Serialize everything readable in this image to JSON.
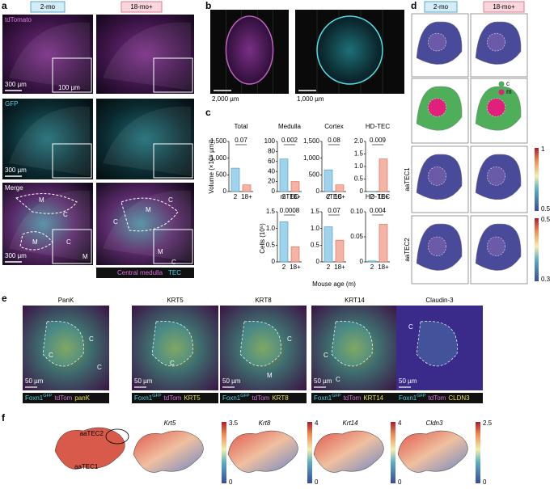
{
  "a": {
    "label": "a",
    "headers": [
      "2-mo",
      "18-mo+"
    ],
    "rows": [
      {
        "channel": "tdTomato",
        "scale": "300 µm",
        "inset_scale": "100 µm"
      },
      {
        "channel": "GFP",
        "scale": "300 µm"
      },
      {
        "channel": "Merge",
        "scale": "300 µm",
        "regions_left": [
          "M",
          "C",
          "M",
          "C",
          "M"
        ],
        "regions_right": [
          "C",
          "M",
          "C",
          "M",
          "C"
        ]
      }
    ],
    "legend": [
      "Central medulla",
      "TEC"
    ]
  },
  "b": {
    "label": "b",
    "scales": [
      "2,000 µm",
      "1,000 µm"
    ]
  },
  "c": {
    "label": "c",
    "y_titles": [
      "Volume (×10⁸ µm³)",
      "Cells (10⁵)"
    ],
    "x_title": "Mouse age (m)",
    "categories": [
      "2",
      "18+"
    ],
    "colors": [
      "#9fd3ec",
      "#f4b3a5"
    ],
    "plots": [
      {
        "title": "Total",
        "values": [
          700,
          200
        ],
        "p": "0.07",
        "ylim": [
          0,
          1500
        ],
        "yticks": [
          0,
          500,
          {
            "value": 1000,
            "label": "1,000"
          },
          {
            "value": 1500,
            "label": "1,500"
          }
        ]
      },
      {
        "title": "Medulla",
        "values": [
          65,
          20
        ],
        "p": "0.002",
        "ylim": [
          0,
          100
        ],
        "yticks": [
          0,
          20,
          40,
          60,
          80,
          100
        ]
      },
      {
        "title": "Cortex",
        "values": [
          650,
          200
        ],
        "p": "0.08",
        "ylim": [
          0,
          1500
        ],
        "yticks": [
          0,
          500,
          {
            "value": 1000,
            "label": "1,000"
          },
          {
            "value": 1500,
            "label": "1,500"
          }
        ]
      },
      {
        "title": "HD-TEC",
        "values": [
          0.01,
          1.3
        ],
        "p": "0.009",
        "ylim": [
          0,
          2
        ],
        "yticks": [
          0,
          0.5,
          {
            "value": 1,
            "label": "1.0"
          },
          1.5,
          {
            "value": 2,
            "label": "2.0"
          }
        ]
      },
      {
        "title": "mTEC",
        "values": [
          1.2,
          0.45
        ],
        "p": "0.0008",
        "ylim": [
          0,
          1.5
        ],
        "yticks": [
          0,
          0.5,
          {
            "value": 1,
            "label": "1.0"
          },
          1.5
        ]
      },
      {
        "title": "cTEC",
        "values": [
          1.05,
          0.65
        ],
        "p": "0.07",
        "ylim": [
          0,
          1.5
        ],
        "yticks": [
          0,
          0.5,
          {
            "value": 1,
            "label": "1.0"
          },
          1.5
        ]
      },
      {
        "title": "HD-TEC",
        "values": [
          0.002,
          0.075
        ],
        "p": "0.004",
        "ylim": [
          0,
          0.1
        ],
        "yticks": [
          0,
          0.05,
          {
            "value": 0.1,
            "label": "0.10"
          }
        ]
      }
    ]
  },
  "d": {
    "label": "d",
    "headers": [
      "2-mo",
      "18-mo+"
    ],
    "legend": [
      "c",
      "m"
    ],
    "rows": [
      "aaTEC1",
      "aaTEC2"
    ],
    "colorbars": [
      [
        1,
        0.5
      ],
      [
        0.5,
        0.3
      ]
    ]
  },
  "e": {
    "label": "e",
    "scale": "50 µm",
    "legend": [
      "Foxn1",
      "GFP",
      "tdTom"
    ],
    "panels": [
      {
        "title": "PanK",
        "stain": "panK",
        "regions": [
          "C",
          "C",
          "C"
        ]
      },
      {
        "title": "KRT5",
        "stain": "KRT5",
        "regions": [
          "C"
        ]
      },
      {
        "title": "KRT8",
        "stain": "KRT8",
        "regions": [
          "C",
          "M"
        ]
      },
      {
        "title": "KRT14",
        "stain": "KRT14",
        "regions": [
          "C",
          "C"
        ]
      },
      {
        "title": "Claudin-3",
        "stain": "CLDN3",
        "regions": [
          "C"
        ]
      }
    ]
  },
  "f": {
    "label": "f",
    "clusters": [
      "aaTEC2",
      "aaTEC1"
    ],
    "genes": [
      {
        "name": "Krt5",
        "max": 3.5,
        "min": 0
      },
      {
        "name": "Krt8",
        "max": 4,
        "min": 0
      },
      {
        "name": "Krt14",
        "max": 4,
        "min": 0
      },
      {
        "name": "Cldn3",
        "max": 2.5,
        "min": 0
      }
    ]
  }
}
